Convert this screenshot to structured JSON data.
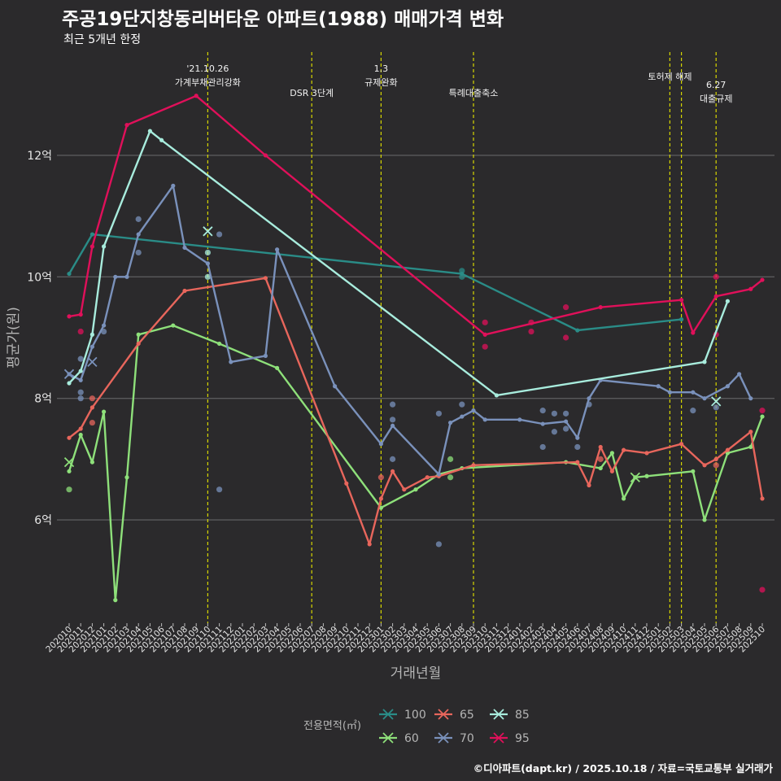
{
  "title": "주공19단지창동리버타운 아파트(1988) 매매가격 변화",
  "subtitle": "최근 5개년 한정",
  "caption": "©디아파트(dapt.kr) / 2025.10.18 / 자료=국토교통부 실거래가",
  "chart_data": {
    "type": "line",
    "title": "주공19단지창동리버타운 아파트(1988) 매매가격 변화",
    "xlabel": "거래년월",
    "ylabel": "평균가(원)",
    "ylim": [
      4.3,
      13.7
    ],
    "yticks": [
      6,
      8,
      10,
      12
    ],
    "ytick_labels": [
      "6억",
      "8억",
      "10억",
      "12억"
    ],
    "grid": true,
    "legend_title": "전용면적(㎡)",
    "legend_position": "bottom",
    "months": [
      "202010",
      "202011",
      "202012",
      "202101",
      "202102",
      "202103",
      "202104",
      "202105",
      "202106",
      "202107",
      "202108",
      "202109",
      "202110",
      "202111",
      "202112",
      "202201",
      "202202",
      "202203",
      "202204",
      "202205",
      "202206",
      "202207",
      "202208",
      "202209",
      "202210",
      "202211",
      "202212",
      "202301",
      "202302",
      "202303",
      "202304",
      "202305",
      "202306",
      "202307",
      "202308",
      "202309",
      "202310",
      "202311",
      "202312",
      "202401",
      "202402",
      "202403",
      "202404",
      "202405",
      "202406",
      "202407",
      "202408",
      "202409",
      "202410",
      "202411",
      "202412",
      "202501",
      "202502",
      "202503",
      "202504",
      "202505",
      "202506",
      "202507",
      "202508",
      "202509",
      "202510"
    ],
    "events": [
      {
        "month": "202110",
        "label": [
          "'21.10.26",
          "가계부채관리강화"
        ]
      },
      {
        "month": "202207",
        "label": [
          "DSR 3단계"
        ]
      },
      {
        "month": "202301",
        "label": [
          "1.3",
          "규제완화"
        ]
      },
      {
        "month": "202309",
        "label": [
          "특례대출축소"
        ]
      },
      {
        "month": "202502",
        "label": [
          "토허제 해제"
        ]
      },
      {
        "month": "202503",
        "label": [
          ""
        ]
      },
      {
        "month": "202506",
        "label": [
          "6.27",
          "대출규제"
        ]
      }
    ],
    "series": [
      {
        "name": "100",
        "color": "#2a8c87",
        "line": [
          [
            "202010",
            10.05
          ],
          [
            "202012",
            10.7
          ],
          [
            "202308",
            10.05
          ],
          [
            "202406",
            9.12
          ],
          [
            "202503",
            9.3
          ]
        ],
        "points": [
          [
            "202308",
            10.1
          ],
          [
            "202308",
            10.0
          ]
        ],
        "crosses": []
      },
      {
        "name": "60",
        "color": "#8ee07a",
        "line": [
          [
            "202010",
            6.8
          ],
          [
            "202011",
            7.4
          ],
          [
            "202012",
            6.95
          ],
          [
            "202101",
            7.78
          ],
          [
            "202102",
            4.68
          ],
          [
            "202103",
            6.7
          ],
          [
            "202104",
            9.05
          ],
          [
            "202107",
            9.2
          ],
          [
            "202111",
            8.9
          ],
          [
            "202204",
            8.5
          ],
          [
            "202301",
            6.2
          ],
          [
            "202304",
            6.5
          ],
          [
            "202306",
            6.75
          ],
          [
            "202308",
            6.85
          ],
          [
            "202405",
            6.95
          ],
          [
            "202408",
            6.85
          ],
          [
            "202409",
            7.1
          ],
          [
            "202410",
            6.35
          ],
          [
            "202411",
            6.7
          ],
          [
            "202412",
            6.72
          ],
          [
            "202504",
            6.8
          ],
          [
            "202505",
            6.0
          ],
          [
            "202507",
            7.1
          ],
          [
            "202509",
            7.2
          ],
          [
            "202510",
            7.7
          ]
        ],
        "points": [
          [
            "202010",
            6.5
          ],
          [
            "202307",
            7.0
          ],
          [
            "202307",
            6.7
          ]
        ],
        "crosses": [
          [
            "202010",
            6.95
          ],
          [
            "202411",
            6.7
          ]
        ]
      },
      {
        "name": "65",
        "color": "#e8665c",
        "line": [
          [
            "202010",
            7.35
          ],
          [
            "202011",
            7.5
          ],
          [
            "202012",
            7.85
          ],
          [
            "202104",
            8.9
          ],
          [
            "202108",
            9.77
          ],
          [
            "202203",
            9.98
          ],
          [
            "202210",
            6.6
          ],
          [
            "202212",
            5.6
          ],
          [
            "202301",
            6.35
          ],
          [
            "202302",
            6.8
          ],
          [
            "202303",
            6.5
          ],
          [
            "202305",
            6.7
          ],
          [
            "202306",
            6.72
          ],
          [
            "202309",
            6.9
          ],
          [
            "202406",
            6.95
          ],
          [
            "202407",
            6.57
          ],
          [
            "202408",
            7.2
          ],
          [
            "202409",
            6.8
          ],
          [
            "202410",
            7.15
          ],
          [
            "202412",
            7.1
          ],
          [
            "202503",
            7.25
          ],
          [
            "202505",
            6.9
          ],
          [
            "202506",
            7.0
          ],
          [
            "202507",
            7.15
          ],
          [
            "202509",
            7.45
          ],
          [
            "202510",
            6.35
          ]
        ],
        "points": [
          [
            "202012",
            7.6
          ],
          [
            "202012",
            8.0
          ],
          [
            "202301",
            6.7
          ],
          [
            "202408",
            7.0
          ],
          [
            "202506",
            6.9
          ]
        ],
        "crosses": []
      },
      {
        "name": "70",
        "color": "#7a91bb",
        "line": [
          [
            "202010",
            8.4
          ],
          [
            "202011",
            8.3
          ],
          [
            "202012",
            8.85
          ],
          [
            "202101",
            9.2
          ],
          [
            "202102",
            10.0
          ],
          [
            "202103",
            10.0
          ],
          [
            "202104",
            10.7
          ],
          [
            "202107",
            11.5
          ],
          [
            "202108",
            10.48
          ],
          [
            "202110",
            10.22
          ],
          [
            "202112",
            8.6
          ],
          [
            "202203",
            8.7
          ],
          [
            "202204",
            10.45
          ],
          [
            "202209",
            8.2
          ],
          [
            "202301",
            7.25
          ],
          [
            "202302",
            7.55
          ],
          [
            "202306",
            6.75
          ],
          [
            "202307",
            7.6
          ],
          [
            "202308",
            7.7
          ],
          [
            "202309",
            7.8
          ],
          [
            "202310",
            7.65
          ],
          [
            "202401",
            7.65
          ],
          [
            "202403",
            7.58
          ],
          [
            "202405",
            7.62
          ],
          [
            "202406",
            7.35
          ],
          [
            "202407",
            8.0
          ],
          [
            "202408",
            8.3
          ],
          [
            "202501",
            8.2
          ],
          [
            "202502",
            8.1
          ],
          [
            "202504",
            8.1
          ],
          [
            "202505",
            8.0
          ],
          [
            "202507",
            8.2
          ],
          [
            "202508",
            8.4
          ],
          [
            "202509",
            8.0
          ]
        ],
        "points": [
          [
            "202011",
            8.65
          ],
          [
            "202011",
            8.1
          ],
          [
            "202011",
            8.0
          ],
          [
            "202101",
            9.1
          ],
          [
            "202104",
            10.95
          ],
          [
            "202104",
            10.4
          ],
          [
            "202111",
            10.7
          ],
          [
            "202111",
            6.5
          ],
          [
            "202302",
            7.9
          ],
          [
            "202302",
            7.65
          ],
          [
            "202302",
            7.0
          ],
          [
            "202306",
            5.6
          ],
          [
            "202306",
            7.75
          ],
          [
            "202308",
            7.9
          ],
          [
            "202403",
            7.8
          ],
          [
            "202403",
            7.2
          ],
          [
            "202404",
            7.75
          ],
          [
            "202404",
            7.45
          ],
          [
            "202405",
            7.75
          ],
          [
            "202405",
            7.5
          ],
          [
            "202406",
            7.2
          ],
          [
            "202407",
            7.9
          ],
          [
            "202504",
            7.8
          ],
          [
            "202506",
            7.85
          ]
        ],
        "crosses": [
          [
            "202010",
            8.4
          ],
          [
            "202012",
            8.6
          ]
        ]
      },
      {
        "name": "85",
        "color": "#a8ecdd",
        "line": [
          [
            "202010",
            8.25
          ],
          [
            "202011",
            8.45
          ],
          [
            "202012",
            9.05
          ],
          [
            "202101",
            10.5
          ],
          [
            "202105",
            12.4
          ],
          [
            "202106",
            12.25
          ],
          [
            "202311",
            8.05
          ],
          [
            "202505",
            8.6
          ],
          [
            "202507",
            9.6
          ]
        ],
        "points": [
          [
            "202110",
            10.4
          ],
          [
            "202110",
            10.0
          ]
        ],
        "crosses": [
          [
            "202110",
            10.75
          ],
          [
            "202506",
            7.95
          ]
        ]
      },
      {
        "name": "95",
        "color": "#e0105a",
        "line": [
          [
            "202010",
            9.35
          ],
          [
            "202011",
            9.38
          ],
          [
            "202012",
            10.5
          ],
          [
            "202103",
            12.5
          ],
          [
            "202109",
            12.98
          ],
          [
            "202203",
            12.0
          ],
          [
            "202310",
            9.05
          ],
          [
            "202408",
            9.5
          ],
          [
            "202503",
            9.62
          ],
          [
            "202504",
            9.08
          ],
          [
            "202506",
            9.68
          ],
          [
            "202509",
            9.8
          ],
          [
            "202510",
            9.95
          ]
        ],
        "points": [
          [
            "202011",
            9.1
          ],
          [
            "202310",
            9.25
          ],
          [
            "202310",
            8.85
          ],
          [
            "202402",
            9.25
          ],
          [
            "202402",
            9.1
          ],
          [
            "202405",
            9.5
          ],
          [
            "202405",
            9.0
          ],
          [
            "202506",
            10.0
          ],
          [
            "202506",
            9.05
          ],
          [
            "202510",
            7.8
          ],
          [
            "202510",
            4.85
          ]
        ],
        "crosses": []
      }
    ]
  }
}
